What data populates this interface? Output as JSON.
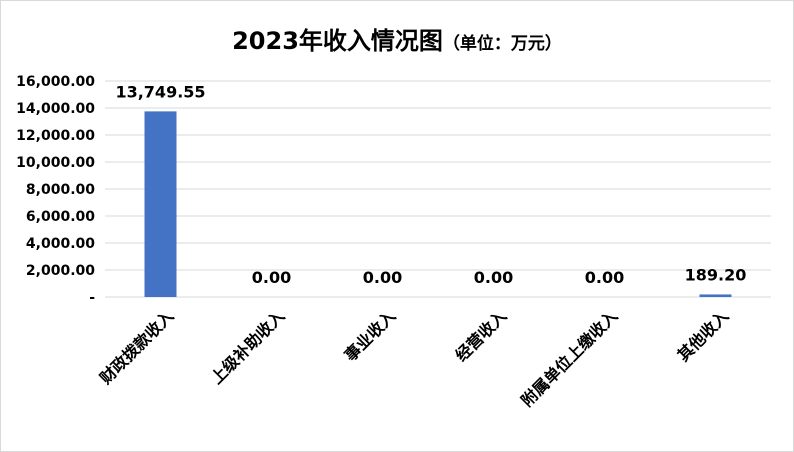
{
  "chart_data": {
    "type": "bar",
    "title": "2023年收入情况图",
    "title_unit": "（单位：万元）",
    "categories": [
      "财政拨款收入",
      "上级补助收入",
      "事业收入",
      "经营收入",
      "附属单位上缴收入",
      "其他收入"
    ],
    "values": [
      13749.55,
      0,
      0,
      0,
      0,
      189.2
    ],
    "data_labels": [
      "13,749.55",
      "0.00",
      "0.00",
      "0.00",
      "0.00",
      "189.20"
    ],
    "ylim": [
      0,
      16000
    ],
    "yticks": [
      0,
      2000,
      4000,
      6000,
      8000,
      10000,
      12000,
      14000,
      16000
    ],
    "ytick_labels": [
      "-",
      "2,000.00",
      "4,000.00",
      "6,000.00",
      "8,000.00",
      "10,000.00",
      "12,000.00",
      "14,000.00",
      "16,000.00"
    ],
    "xlabel": "",
    "ylabel": "",
    "grid": true,
    "legend": "none",
    "bar_color": "#4472c4",
    "grid_color": "#d9d9d9"
  }
}
